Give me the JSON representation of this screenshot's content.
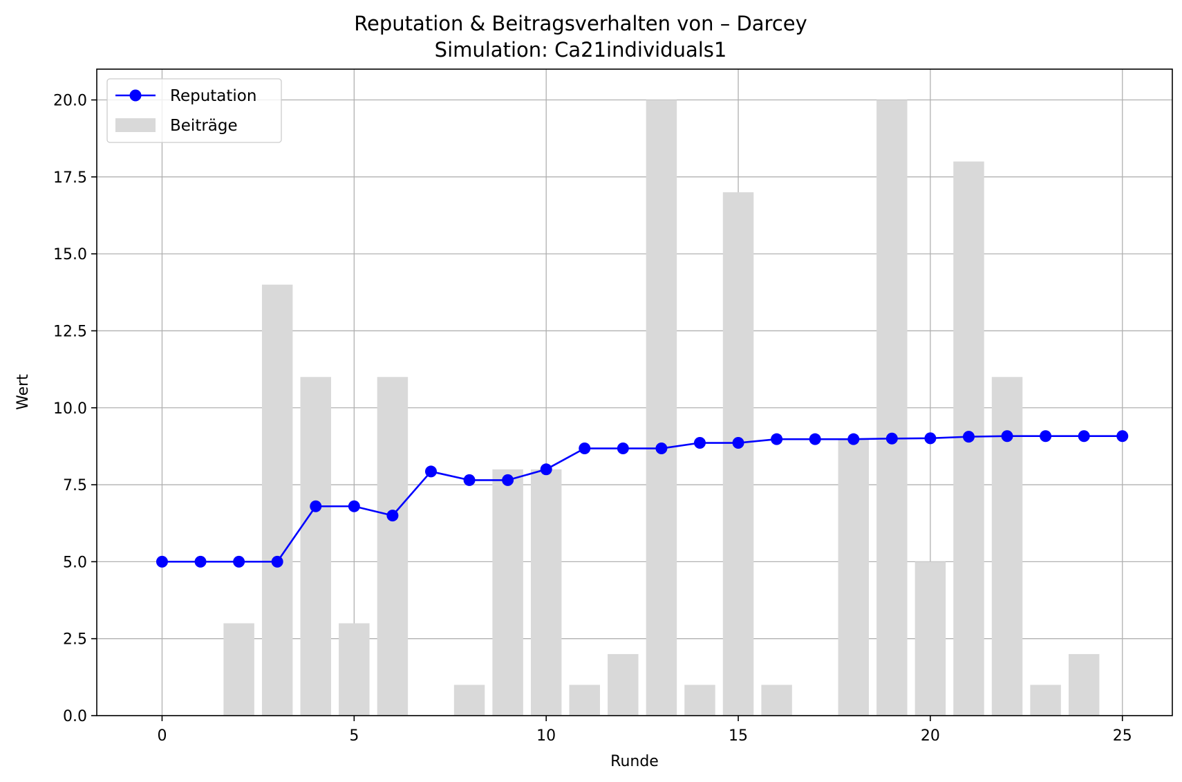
{
  "chart_data": {
    "type": "bar",
    "title": "Reputation & Beitragsverhalten von – Darcey",
    "subtitle": "Simulation: Ca21individuals1",
    "xlabel": "Runde",
    "ylabel": "Wert",
    "xlim": [
      -1.7,
      26.3
    ],
    "ylim": [
      0,
      21
    ],
    "xticks": [
      0,
      5,
      10,
      15,
      20,
      25
    ],
    "yticks": [
      0.0,
      2.5,
      5.0,
      7.5,
      10.0,
      12.5,
      15.0,
      17.5,
      20.0
    ],
    "xtick_labels": [
      "0",
      "5",
      "10",
      "15",
      "20",
      "25"
    ],
    "ytick_labels": [
      "0.0",
      "2.5",
      "5.0",
      "7.5",
      "10.0",
      "12.5",
      "15.0",
      "17.5",
      "20.0"
    ],
    "grid": true,
    "legend_position": "top-left",
    "x": [
      0,
      1,
      2,
      3,
      4,
      5,
      6,
      7,
      8,
      9,
      10,
      11,
      12,
      13,
      14,
      15,
      16,
      17,
      18,
      19,
      20,
      21,
      22,
      23,
      24,
      25
    ],
    "series": [
      {
        "name": "Reputation",
        "kind": "line",
        "marker": "circle",
        "color": "#0000ff",
        "values": [
          5.0,
          5.0,
          5.0,
          5.0,
          6.8,
          6.8,
          6.5,
          7.93,
          7.65,
          7.65,
          8.0,
          8.68,
          8.68,
          8.68,
          8.86,
          8.86,
          8.98,
          8.98,
          8.98,
          9.0,
          9.01,
          9.06,
          9.08,
          9.08,
          9.08,
          9.08
        ]
      },
      {
        "name": "Beiträge",
        "kind": "bar",
        "color": "#d9d9d9",
        "values": [
          0,
          0,
          3,
          14,
          11,
          3,
          11,
          0,
          1,
          8,
          8,
          1,
          2,
          20,
          1,
          17,
          1,
          0,
          9,
          20,
          5,
          18,
          11,
          1,
          2,
          0
        ]
      }
    ]
  }
}
